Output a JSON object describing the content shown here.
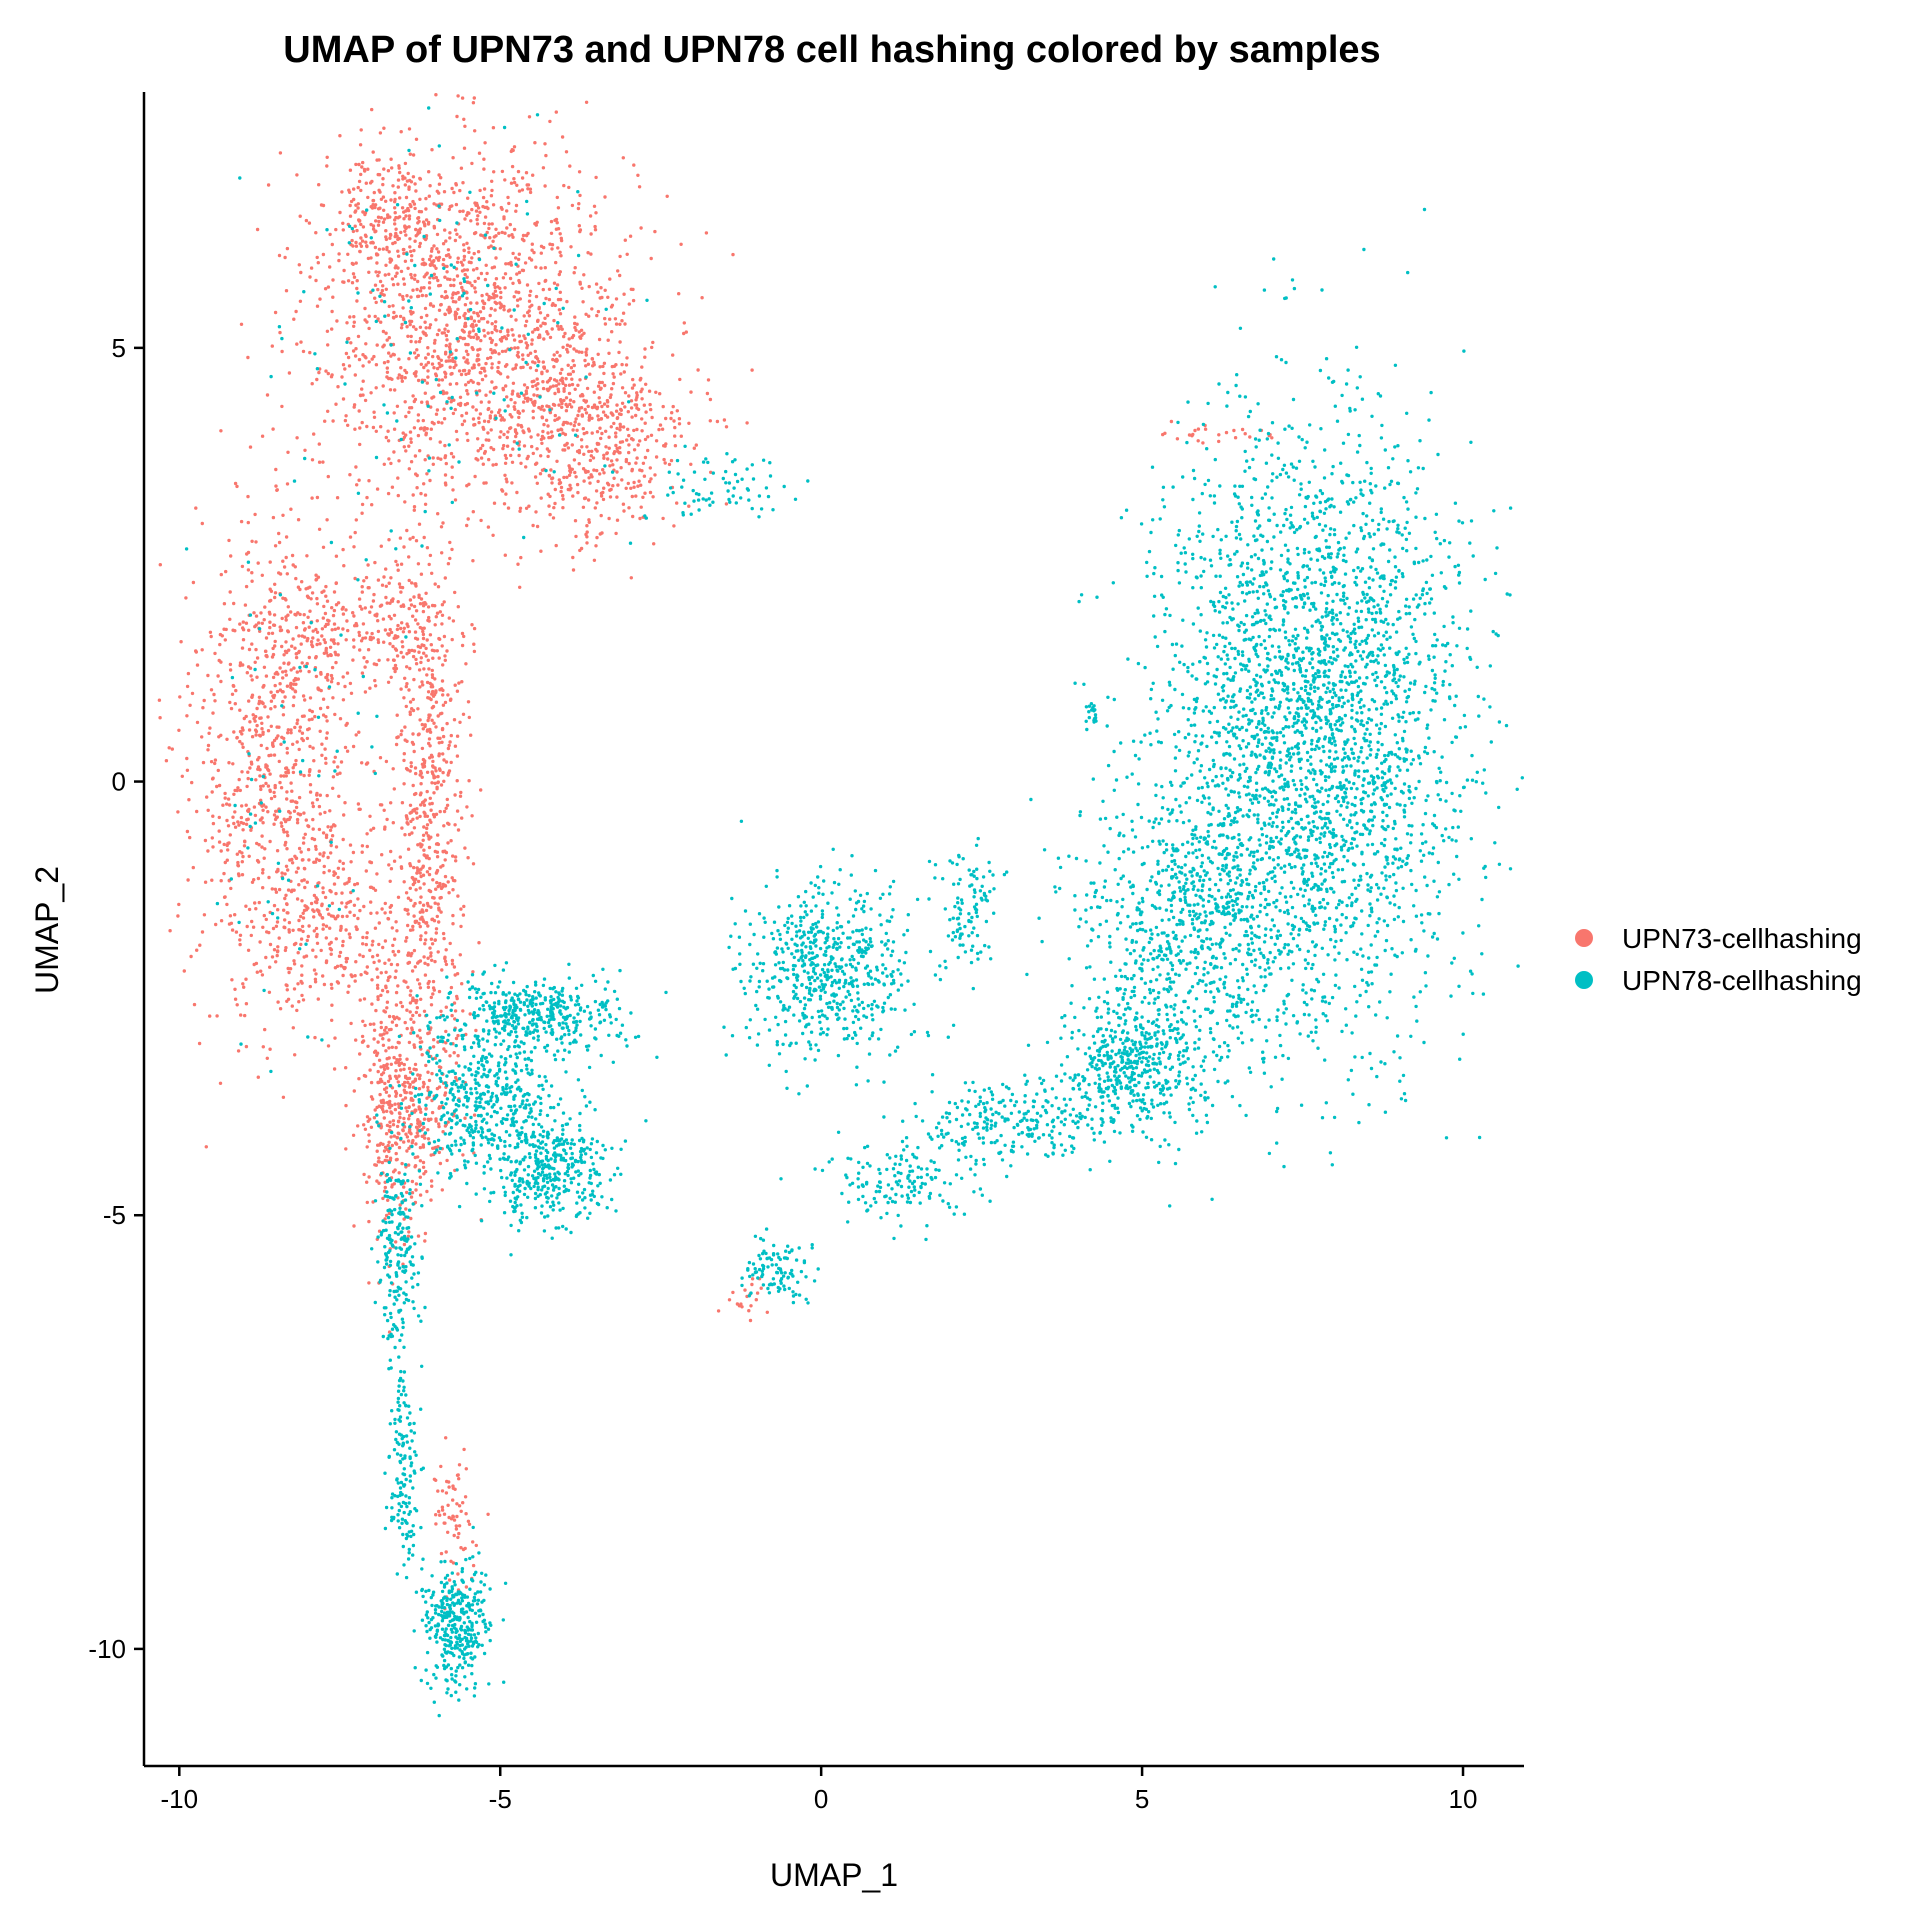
{
  "chart_data": {
    "type": "scatter",
    "title": "UMAP of UPN73 and UPN78 cell hashing colored by samples",
    "xlabel": "UMAP_1",
    "ylabel": "UMAP_2",
    "xlim": [
      -10.55,
      10.95
    ],
    "ylim": [
      -11.35,
      7.95
    ],
    "xticks": [
      -10,
      -5,
      0,
      5,
      10
    ],
    "xtick_labels": [
      "-10",
      "-5",
      "0",
      "5",
      "10"
    ],
    "yticks": [
      5,
      0,
      -5,
      -10
    ],
    "ytick_labels": [
      "5",
      "0",
      "-5",
      "-10"
    ],
    "grid": false,
    "legend_position": "right",
    "series": [
      {
        "name": "UPN73-cellhashing",
        "color": "#F8766D",
        "clusters": [
          {
            "center": [
              -5.4,
              5.3
            ],
            "spread": [
              1.25,
              1.0
            ],
            "count": 1500
          },
          {
            "center": [
              -3.6,
              3.9
            ],
            "spread": [
              0.8,
              0.6
            ],
            "count": 500
          },
          {
            "center": [
              -6.8,
              6.5
            ],
            "spread": [
              0.5,
              0.35
            ],
            "count": 200
          },
          {
            "center": [
              -8.5,
              0.2
            ],
            "spread": [
              0.65,
              1.5
            ],
            "count": 900
          },
          {
            "center": [
              -7.3,
              1.8
            ],
            "spread": [
              0.8,
              0.3
            ],
            "count": 250
          },
          {
            "center": [
              -6.1,
              -0.3
            ],
            "spread": [
              0.3,
              1.7
            ],
            "count": 700
          },
          {
            "center": [
              -7.6,
              -1.6
            ],
            "spread": [
              0.5,
              0.5
            ],
            "count": 200
          },
          {
            "center": [
              -6.7,
              -3.4
            ],
            "spread": [
              0.25,
              1.0
            ],
            "count": 300
          },
          {
            "center": [
              -6.4,
              -4.0
            ],
            "spread": [
              0.35,
              0.4
            ],
            "count": 180
          },
          {
            "center": [
              -5.7,
              -8.5
            ],
            "spread": [
              0.18,
              0.45
            ],
            "count": 70
          },
          {
            "center": [
              -1.1,
              -6.0
            ],
            "spread": [
              0.2,
              0.12
            ],
            "count": 20
          },
          {
            "center": [
              6.4,
              4.0
            ],
            "spread": [
              0.5,
              0.06
            ],
            "count": 25
          }
        ]
      },
      {
        "name": "UPN78-cellhashing",
        "color": "#00BFC4",
        "clusters": [
          {
            "center": [
              7.6,
              0.6
            ],
            "spread": [
              1.2,
              1.7
            ],
            "count": 3000
          },
          {
            "center": [
              5.6,
              -1.7
            ],
            "spread": [
              0.9,
              0.8
            ],
            "count": 700
          },
          {
            "center": [
              4.8,
              -3.3
            ],
            "spread": [
              0.55,
              0.4
            ],
            "count": 450
          },
          {
            "center": [
              3.0,
              -3.9
            ],
            "spread": [
              0.8,
              0.25
            ],
            "count": 250
          },
          {
            "center": [
              1.2,
              -4.6
            ],
            "spread": [
              0.6,
              0.25
            ],
            "count": 150
          },
          {
            "center": [
              2.3,
              -1.4
            ],
            "spread": [
              0.25,
              0.35
            ],
            "count": 100
          },
          {
            "center": [
              4.2,
              0.8
            ],
            "spread": [
              0.06,
              0.08
            ],
            "count": 20
          },
          {
            "center": [
              0.1,
              -2.2
            ],
            "spread": [
              0.65,
              0.5
            ],
            "count": 600
          },
          {
            "center": [
              -4.4,
              -2.7
            ],
            "spread": [
              0.7,
              0.22
            ],
            "count": 400
          },
          {
            "center": [
              -5.2,
              -3.7
            ],
            "spread": [
              0.6,
              0.45
            ],
            "count": 500
          },
          {
            "center": [
              -4.2,
              -4.5
            ],
            "spread": [
              0.45,
              0.3
            ],
            "count": 350
          },
          {
            "center": [
              -6.6,
              -5.4
            ],
            "spread": [
              0.18,
              0.6
            ],
            "count": 200
          },
          {
            "center": [
              -6.5,
              -7.9
            ],
            "spread": [
              0.12,
              0.55
            ],
            "count": 150
          },
          {
            "center": [
              -5.7,
              -9.7
            ],
            "spread": [
              0.25,
              0.35
            ],
            "count": 350
          },
          {
            "center": [
              -0.7,
              -5.6
            ],
            "spread": [
              0.3,
              0.2
            ],
            "count": 100
          },
          {
            "center": [
              -1.7,
              3.4
            ],
            "spread": [
              0.55,
              0.2
            ],
            "count": 70
          },
          {
            "center": [
              -5.5,
              5.0
            ],
            "spread": [
              1.3,
              1.1
            ],
            "count": 120
          },
          {
            "center": [
              -8.2,
              0.0
            ],
            "spread": [
              0.7,
              1.3
            ],
            "count": 60
          }
        ]
      }
    ]
  }
}
